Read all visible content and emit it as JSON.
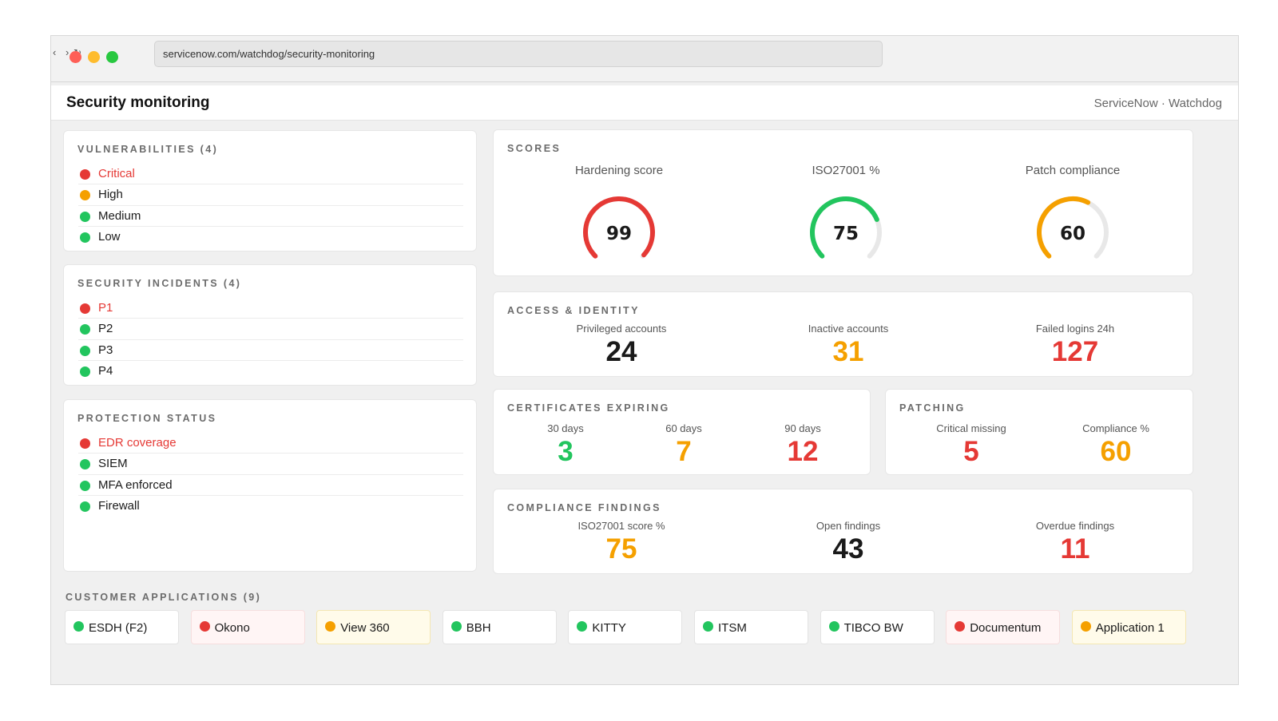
{
  "browser": {
    "url": "servicenow.com/watchdog/security-monitoring",
    "nav": {
      "back": "‹",
      "forward": "›",
      "reload": "↻"
    }
  },
  "header": {
    "title": "Security monitoring",
    "brand": "ServiceNow · Watchdog"
  },
  "colors": {
    "red": "#e53935",
    "amber": "#f5a000",
    "green": "#22c55e",
    "black": "#1a1a1a",
    "track": "#e8e8e8"
  },
  "vulnerabilities": {
    "title": "VULNERABILITIES (4)",
    "items": [
      {
        "label": "Critical",
        "status": "red"
      },
      {
        "label": "High",
        "status": "amber"
      },
      {
        "label": "Medium",
        "status": "green"
      },
      {
        "label": "Low",
        "status": "green"
      }
    ]
  },
  "incidents": {
    "title": "SECURITY INCIDENTS (4)",
    "items": [
      {
        "label": "P1",
        "status": "red"
      },
      {
        "label": "P2",
        "status": "green"
      },
      {
        "label": "P3",
        "status": "green"
      },
      {
        "label": "P4",
        "status": "green"
      }
    ]
  },
  "protection": {
    "title": "PROTECTION STATUS",
    "items": [
      {
        "label": "EDR coverage",
        "status": "red"
      },
      {
        "label": "SIEM",
        "status": "green"
      },
      {
        "label": "MFA enforced",
        "status": "green"
      },
      {
        "label": "Firewall",
        "status": "green"
      }
    ]
  },
  "scores": {
    "title": "SCORES",
    "gauges": [
      {
        "label": "Hardening score",
        "value": "99",
        "fraction": 0.99,
        "color": "#e53935"
      },
      {
        "label": "ISO27001 %",
        "value": "75",
        "fraction": 0.75,
        "color": "#22c55e"
      },
      {
        "label": "Patch compliance",
        "value": "60",
        "fraction": 0.6,
        "color": "#f5a000"
      }
    ]
  },
  "access": {
    "title": "ACCESS & IDENTITY",
    "metrics": [
      {
        "label": "Privileged accounts",
        "value": "24",
        "color": "#1a1a1a"
      },
      {
        "label": "Inactive accounts",
        "value": "31",
        "color": "#f5a000"
      },
      {
        "label": "Failed logins 24h",
        "value": "127",
        "color": "#e53935"
      }
    ]
  },
  "certificates": {
    "title": "CERTIFICATES EXPIRING",
    "metrics": [
      {
        "label": "30 days",
        "value": "3",
        "color": "#22c55e"
      },
      {
        "label": "60 days",
        "value": "7",
        "color": "#f5a000"
      },
      {
        "label": "90 days",
        "value": "12",
        "color": "#e53935"
      }
    ]
  },
  "patching": {
    "title": "PATCHING",
    "metrics": [
      {
        "label": "Critical missing",
        "value": "5",
        "color": "#e53935"
      },
      {
        "label": "Compliance %",
        "value": "60",
        "color": "#f5a000"
      }
    ]
  },
  "compliance": {
    "title": "COMPLIANCE FINDINGS",
    "metrics": [
      {
        "label": "ISO27001 score %",
        "value": "75",
        "color": "#f5a000"
      },
      {
        "label": "Open findings",
        "value": "43",
        "color": "#1a1a1a"
      },
      {
        "label": "Overdue findings",
        "value": "11",
        "color": "#e53935"
      }
    ]
  },
  "apps": {
    "title": "CUSTOMER APPLICATIONS (9)",
    "items": [
      {
        "label": "ESDH (F2)",
        "status": "green"
      },
      {
        "label": "Okono",
        "status": "red"
      },
      {
        "label": "View 360",
        "status": "amber"
      },
      {
        "label": "BBH",
        "status": "green"
      },
      {
        "label": "KITTY",
        "status": "green"
      },
      {
        "label": "ITSM",
        "status": "green"
      },
      {
        "label": "TIBCO BW",
        "status": "green"
      },
      {
        "label": "Documentum",
        "status": "red"
      },
      {
        "label": "Application 1",
        "status": "amber"
      }
    ]
  }
}
